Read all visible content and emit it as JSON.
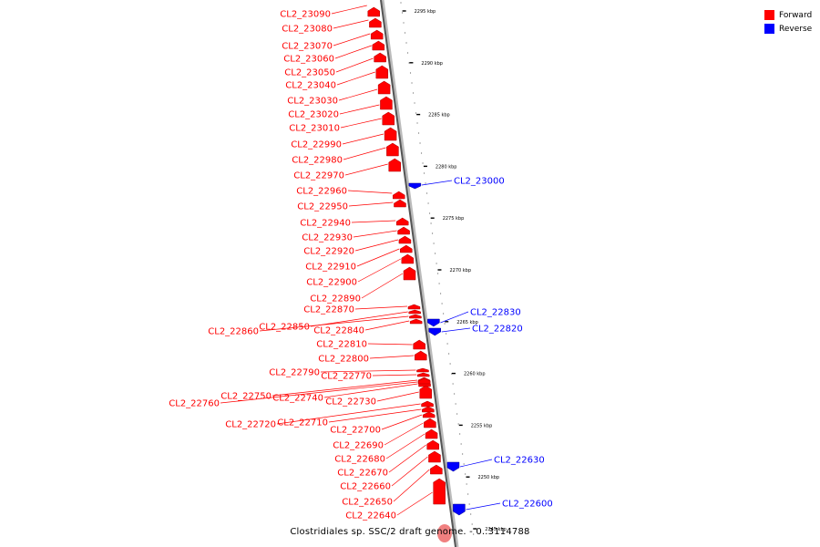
{
  "legend": {
    "forward": {
      "label": "Forward",
      "color": "#ff0000"
    },
    "reverse": {
      "label": "Reverse",
      "color": "#0000ff"
    }
  },
  "caption": "Clostridiales sp. SSC/2 draft genome. - 0..3114788",
  "ruler": {
    "unit": "kbp",
    "ticks": [
      {
        "kbp": 2295,
        "label": "2295 kbp"
      },
      {
        "kbp": 2290,
        "label": "2290 kbp"
      },
      {
        "kbp": 2285,
        "label": "2285 kbp"
      },
      {
        "kbp": 2280,
        "label": "2280 kbp"
      },
      {
        "kbp": 2275,
        "label": "2275 kbp"
      },
      {
        "kbp": 2270,
        "label": "2270 kbp"
      },
      {
        "kbp": 2265,
        "label": "2265 kbp"
      },
      {
        "kbp": 2260,
        "label": "2260 kbp"
      },
      {
        "kbp": 2255,
        "label": "2255 kbp"
      },
      {
        "kbp": 2250,
        "label": "2250 kbp"
      },
      {
        "kbp": 2245,
        "label": "2245 kbp"
      }
    ]
  },
  "genes": [
    {
      "name": "CL2_23090",
      "strand": "forward"
    },
    {
      "name": "CL2_23080",
      "strand": "forward"
    },
    {
      "name": "CL2_23070",
      "strand": "forward"
    },
    {
      "name": "CL2_23060",
      "strand": "forward"
    },
    {
      "name": "CL2_23050",
      "strand": "forward"
    },
    {
      "name": "CL2_23040",
      "strand": "forward"
    },
    {
      "name": "CL2_23030",
      "strand": "forward"
    },
    {
      "name": "CL2_23020",
      "strand": "forward"
    },
    {
      "name": "CL2_23010",
      "strand": "forward"
    },
    {
      "name": "CL2_22990",
      "strand": "forward"
    },
    {
      "name": "CL2_22980",
      "strand": "forward"
    },
    {
      "name": "CL2_22970",
      "strand": "forward"
    },
    {
      "name": "CL2_23000",
      "strand": "reverse"
    },
    {
      "name": "CL2_22960",
      "strand": "forward"
    },
    {
      "name": "CL2_22950",
      "strand": "forward"
    },
    {
      "name": "CL2_22940",
      "strand": "forward"
    },
    {
      "name": "CL2_22930",
      "strand": "forward"
    },
    {
      "name": "CL2_22920",
      "strand": "forward"
    },
    {
      "name": "CL2_22910",
      "strand": "forward"
    },
    {
      "name": "CL2_22900",
      "strand": "forward"
    },
    {
      "name": "CL2_22890",
      "strand": "forward"
    },
    {
      "name": "CL2_22870",
      "strand": "forward"
    },
    {
      "name": "CL2_22850",
      "strand": "forward"
    },
    {
      "name": "CL2_22860",
      "strand": "forward"
    },
    {
      "name": "CL2_22840",
      "strand": "forward"
    },
    {
      "name": "CL2_22830",
      "strand": "reverse"
    },
    {
      "name": "CL2_22820",
      "strand": "reverse"
    },
    {
      "name": "CL2_22810",
      "strand": "forward"
    },
    {
      "name": "CL2_22800",
      "strand": "forward"
    },
    {
      "name": "CL2_22790",
      "strand": "forward"
    },
    {
      "name": "CL2_22770",
      "strand": "forward"
    },
    {
      "name": "CL2_22750",
      "strand": "forward"
    },
    {
      "name": "CL2_22740",
      "strand": "forward"
    },
    {
      "name": "CL2_22760",
      "strand": "forward"
    },
    {
      "name": "CL2_22730",
      "strand": "forward"
    },
    {
      "name": "CL2_22720",
      "strand": "forward"
    },
    {
      "name": "CL2_22710",
      "strand": "forward"
    },
    {
      "name": "CL2_22700",
      "strand": "forward"
    },
    {
      "name": "CL2_22690",
      "strand": "forward"
    },
    {
      "name": "CL2_22680",
      "strand": "forward"
    },
    {
      "name": "CL2_22670",
      "strand": "forward"
    },
    {
      "name": "CL2_22630",
      "strand": "reverse"
    },
    {
      "name": "CL2_22660",
      "strand": "forward"
    },
    {
      "name": "CL2_22650",
      "strand": "forward"
    },
    {
      "name": "CL2_22600",
      "strand": "reverse"
    },
    {
      "name": "CL2_22640",
      "strand": "forward"
    }
  ]
}
